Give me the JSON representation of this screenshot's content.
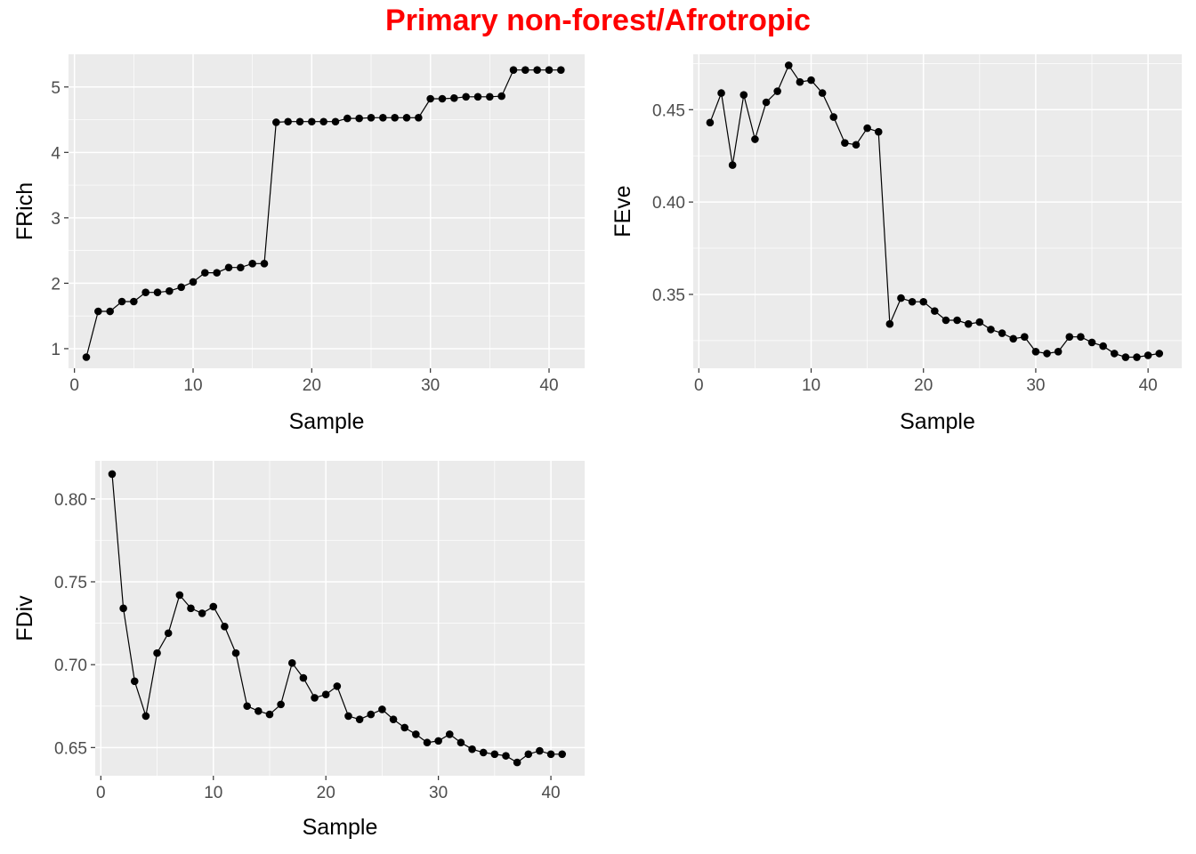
{
  "title": "Primary non-forest/Afrotropic",
  "colors": {
    "title": "#ff0000",
    "panel_background": "#ebebeb",
    "grid": "#ffffff",
    "series": "#000000",
    "tick_label": "#4d4d4d"
  },
  "chart_data": [
    {
      "type": "line",
      "name": "frich",
      "xlabel": "Sample",
      "ylabel": "FRich",
      "xlim": [
        -0.5,
        43
      ],
      "ylim": [
        0.7,
        5.5
      ],
      "xticks": [
        0,
        10,
        20,
        30,
        40
      ],
      "yticks": [
        1,
        2,
        3,
        4,
        5
      ],
      "ytick_labels": [
        "1",
        "2",
        "3",
        "4",
        "5"
      ],
      "grid": true,
      "x": [
        1,
        2,
        3,
        4,
        5,
        6,
        7,
        8,
        9,
        10,
        11,
        12,
        13,
        14,
        15,
        16,
        17,
        18,
        19,
        20,
        21,
        22,
        23,
        24,
        25,
        26,
        27,
        28,
        29,
        30,
        31,
        32,
        33,
        34,
        35,
        36,
        37,
        38,
        39,
        40,
        41
      ],
      "y": [
        0.87,
        1.57,
        1.57,
        1.72,
        1.72,
        1.86,
        1.86,
        1.88,
        1.94,
        2.02,
        2.16,
        2.16,
        2.24,
        2.24,
        2.3,
        2.3,
        4.46,
        4.47,
        4.47,
        4.47,
        4.47,
        4.47,
        4.52,
        4.52,
        4.53,
        4.53,
        4.53,
        4.53,
        4.53,
        4.82,
        4.82,
        4.83,
        4.85,
        4.85,
        4.85,
        4.86,
        5.26,
        5.26,
        5.26,
        5.26,
        5.26
      ]
    },
    {
      "type": "line",
      "name": "feve",
      "xlabel": "Sample",
      "ylabel": "FEve",
      "xlim": [
        -0.5,
        43
      ],
      "ylim": [
        0.31,
        0.48
      ],
      "xticks": [
        0,
        10,
        20,
        30,
        40
      ],
      "yticks": [
        0.35,
        0.4,
        0.45
      ],
      "ytick_labels": [
        "0.35",
        "0.40",
        "0.45"
      ],
      "grid": true,
      "x": [
        1,
        2,
        3,
        4,
        5,
        6,
        7,
        8,
        9,
        10,
        11,
        12,
        13,
        14,
        15,
        16,
        17,
        18,
        19,
        20,
        21,
        22,
        23,
        24,
        25,
        26,
        27,
        28,
        29,
        30,
        31,
        32,
        33,
        34,
        35,
        36,
        37,
        38,
        39,
        40,
        41
      ],
      "y": [
        0.443,
        0.459,
        0.42,
        0.458,
        0.434,
        0.454,
        0.46,
        0.474,
        0.465,
        0.466,
        0.459,
        0.446,
        0.432,
        0.431,
        0.44,
        0.438,
        0.334,
        0.348,
        0.346,
        0.346,
        0.341,
        0.336,
        0.336,
        0.334,
        0.335,
        0.331,
        0.329,
        0.326,
        0.327,
        0.319,
        0.318,
        0.319,
        0.327,
        0.327,
        0.324,
        0.322,
        0.318,
        0.316,
        0.316,
        0.317,
        0.318
      ]
    },
    {
      "type": "line",
      "name": "fdiv",
      "xlabel": "Sample",
      "ylabel": "FDiv",
      "xlim": [
        -0.5,
        43
      ],
      "ylim": [
        0.633,
        0.823
      ],
      "xticks": [
        0,
        10,
        20,
        30,
        40
      ],
      "yticks": [
        0.65,
        0.7,
        0.75,
        0.8
      ],
      "ytick_labels": [
        "0.65",
        "0.70",
        "0.75",
        "0.80"
      ],
      "grid": true,
      "x": [
        1,
        2,
        3,
        4,
        5,
        6,
        7,
        8,
        9,
        10,
        11,
        12,
        13,
        14,
        15,
        16,
        17,
        18,
        19,
        20,
        21,
        22,
        23,
        24,
        25,
        26,
        27,
        28,
        29,
        30,
        31,
        32,
        33,
        34,
        35,
        36,
        37,
        38,
        39,
        40,
        41
      ],
      "y": [
        0.815,
        0.734,
        0.69,
        0.669,
        0.707,
        0.719,
        0.742,
        0.734,
        0.731,
        0.735,
        0.723,
        0.707,
        0.675,
        0.672,
        0.67,
        0.676,
        0.701,
        0.692,
        0.68,
        0.682,
        0.687,
        0.669,
        0.667,
        0.67,
        0.673,
        0.667,
        0.662,
        0.658,
        0.653,
        0.654,
        0.658,
        0.653,
        0.649,
        0.647,
        0.646,
        0.645,
        0.641,
        0.646,
        0.648,
        0.646,
        0.646
      ]
    }
  ]
}
